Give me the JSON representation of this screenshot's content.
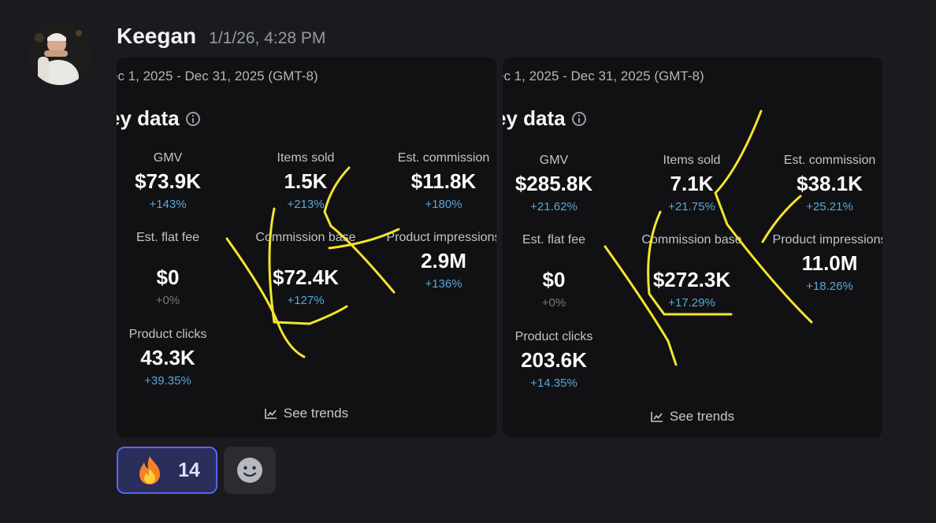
{
  "message": {
    "author": "Keegan",
    "timestamp": "1/1/26, 4:28 PM"
  },
  "screenshots": [
    {
      "date_range": "ec 1, 2025 - Dec 31, 2025 (GMT-8)",
      "title": "Key data",
      "title_visible": "ey data",
      "metrics": {
        "gmv": {
          "label": "GMV",
          "value": "$73.9K",
          "change": "+143%"
        },
        "items_sold": {
          "label": "Items sold",
          "value": "1.5K",
          "change": "+213%"
        },
        "est_commission": {
          "label": "Est. commission",
          "value": "$11.8K",
          "change": "+180%"
        },
        "flat_fee": {
          "label": "Est. flat fee",
          "value": "$0",
          "change": "+0%"
        },
        "commission_base": {
          "label": "Commission base",
          "value": "$72.4K",
          "change": "+127%"
        },
        "impressions": {
          "label": "Product impressions",
          "value": "2.9M",
          "change": "+136%"
        },
        "clicks": {
          "label": "Product clicks",
          "value": "43.3K",
          "change": "+39.35%"
        }
      },
      "trends_label": "See trends"
    },
    {
      "date_range": "ec 1, 2025 - Dec 31, 2025 (GMT-8)",
      "title": "Key data",
      "title_visible": "ey data",
      "metrics": {
        "gmv": {
          "label": "GMV",
          "value": "$285.8K",
          "change": "+21.62%"
        },
        "items_sold": {
          "label": "Items sold",
          "value": "7.1K",
          "change": "+21.75%"
        },
        "est_commission": {
          "label": "Est. commission",
          "value": "$38.1K",
          "change": "+25.21%"
        },
        "flat_fee": {
          "label": "Est. flat fee",
          "value": "$0",
          "change": "+0%"
        },
        "commission_base": {
          "label": "Commission base",
          "value": "$272.3K",
          "change": "+17.29%"
        },
        "impressions": {
          "label": "Product impressions",
          "value": "11.0M",
          "change": "+18.26%"
        },
        "clicks": {
          "label": "Product clicks",
          "value": "203.6K",
          "change": "+14.35%"
        }
      },
      "trends_label": "See trends"
    }
  ],
  "reactions": [
    {
      "emoji": "fire-icon",
      "count": "14",
      "selected": true
    }
  ],
  "colors": {
    "background": "#1b1b1f",
    "accent": "#5865f2",
    "change_positive": "#5aa7d6",
    "scribble": "#f3e52e"
  }
}
